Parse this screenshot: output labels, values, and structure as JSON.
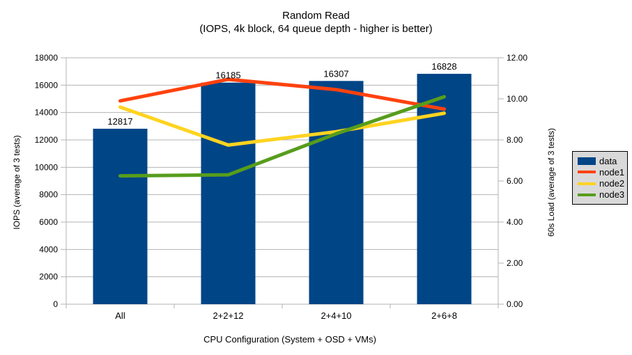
{
  "colors": {
    "background": "#ffffff",
    "grid": "#b3b3b3",
    "axis": "#b3b3b3",
    "text": "#000000",
    "legend_bg": "#d9d9d9",
    "legend_border": "#000000",
    "bar_blue": "#004586",
    "line_red": "#ff420e",
    "line_yellow": "#ffd320",
    "line_green": "#579d1c"
  },
  "chart_data": {
    "type": "bar+line",
    "title": "Random Read",
    "subtitle": "(IOPS, 4k block, 64 queue depth - higher is better)",
    "categories": [
      "All",
      "2+2+12",
      "2+4+10",
      "2+6+8"
    ],
    "bar_series": {
      "name": "data",
      "axis": "left",
      "color": "#004586",
      "values": [
        12817,
        16185,
        16307,
        16828
      ],
      "data_labels": [
        "12817",
        "16185",
        "16307",
        "16828"
      ]
    },
    "line_series": [
      {
        "name": "node1",
        "axis": "right",
        "color": "#ff420e",
        "values": [
          9.9,
          10.95,
          10.45,
          9.5
        ]
      },
      {
        "name": "node2",
        "axis": "right",
        "color": "#ffd320",
        "values": [
          9.6,
          7.75,
          8.4,
          9.3
        ]
      },
      {
        "name": "node3",
        "axis": "right",
        "color": "#579d1c",
        "values": [
          6.25,
          6.3,
          8.3,
          10.1
        ]
      }
    ],
    "left_axis": {
      "title": "IOPS (average of 3 tests)",
      "min": 0,
      "max": 18000,
      "step": 2000,
      "tick_labels": [
        "0",
        "2000",
        "4000",
        "6000",
        "8000",
        "10000",
        "12000",
        "14000",
        "16000",
        "18000"
      ]
    },
    "right_axis": {
      "title": "60s Load (average of 3 tests)",
      "min": 0,
      "max": 12,
      "step": 2,
      "tick_labels": [
        "0.00",
        "2.00",
        "4.00",
        "6.00",
        "8.00",
        "10.00",
        "12.00"
      ]
    },
    "x_axis": {
      "title": "CPU Configuration (System + OSD + VMs)"
    },
    "grid": true,
    "legend": {
      "position": "right",
      "entries": [
        {
          "label": "data",
          "color": "#004586",
          "type": "bar"
        },
        {
          "label": "node1",
          "color": "#ff420e",
          "type": "line"
        },
        {
          "label": "node2",
          "color": "#ffd320",
          "type": "line"
        },
        {
          "label": "node3",
          "color": "#579d1c",
          "type": "line"
        }
      ]
    }
  }
}
